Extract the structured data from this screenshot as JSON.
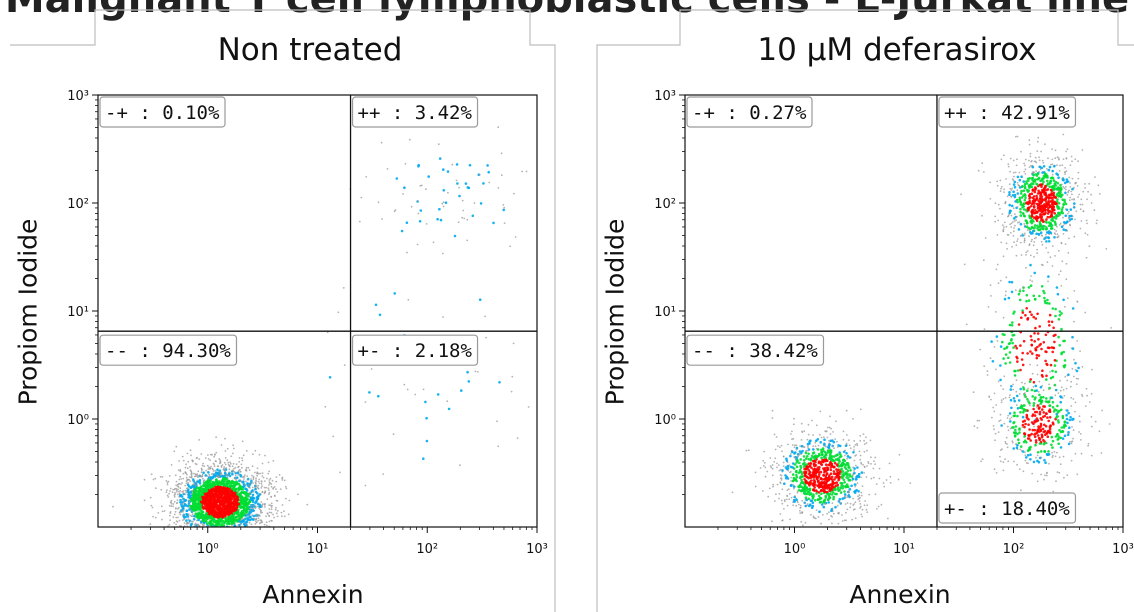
{
  "figure_title": "Malignant T cell lymphoblastic cells - L-Jurkat line",
  "chart_data": [
    {
      "type": "scatter",
      "title": "Non treated",
      "xlabel": "Annexin",
      "ylabel": "Propiom Iodide",
      "x_scale": "log",
      "y_scale": "log",
      "xlim": [
        0.1,
        1000
      ],
      "ylim": [
        0.1,
        1000
      ],
      "x_ticks": [
        1,
        10,
        100,
        1000
      ],
      "y_ticks": [
        1,
        10,
        100,
        1000
      ],
      "x_tick_labels": [
        "10⁰",
        "10¹",
        "10²",
        "10³"
      ],
      "y_tick_labels": [
        "10⁰",
        "10¹",
        "10²",
        "10³"
      ],
      "quadrant_gate": {
        "x": 20,
        "y": 6.5
      },
      "quadrants": [
        {
          "name": "-+",
          "label": "-+ : 0.10%",
          "percent": 0.1,
          "position": "top-left"
        },
        {
          "name": "++",
          "label": "++ : 3.42%",
          "percent": 3.42,
          "position": "top-right"
        },
        {
          "name": "--",
          "label": "-- : 94.30%",
          "percent": 94.3,
          "position": "bottom-left"
        },
        {
          "name": "+-",
          "label": "+- : 2.18%",
          "percent": 2.18,
          "position": "bottom-right"
        }
      ],
      "populations": [
        {
          "x": 1.3,
          "y": 0.17,
          "spread_x": 0.22,
          "spread_y": 0.18,
          "weight": 0.943
        },
        {
          "x": 150,
          "y": 110,
          "spread_x": 0.35,
          "spread_y": 0.25,
          "weight": 0.034
        },
        {
          "x": 90,
          "y": 3,
          "spread_x": 0.5,
          "spread_y": 0.6,
          "weight": 0.022
        }
      ],
      "density_colors": [
        "#9a9a9a",
        "#00aaee",
        "#00dd33",
        "#ff0000"
      ]
    },
    {
      "type": "scatter",
      "title": "10 µM deferasirox",
      "xlabel": "Annexin",
      "ylabel": "Propiom Iodide",
      "x_scale": "log",
      "y_scale": "log",
      "xlim": [
        0.1,
        1000
      ],
      "ylim": [
        0.1,
        1000
      ],
      "x_ticks": [
        1,
        10,
        100,
        1000
      ],
      "y_ticks": [
        1,
        10,
        100,
        1000
      ],
      "x_tick_labels": [
        "10⁰",
        "10¹",
        "10²",
        "10³"
      ],
      "y_tick_labels": [
        "10⁰",
        "10¹",
        "10²",
        "10³"
      ],
      "quadrant_gate": {
        "x": 20,
        "y": 6.5
      },
      "quadrants": [
        {
          "name": "-+",
          "label": "-+ : 0.27%",
          "percent": 0.27,
          "position": "top-left"
        },
        {
          "name": "++",
          "label": "++ : 42.91%",
          "percent": 42.91,
          "position": "top-right"
        },
        {
          "name": "--",
          "label": "-- : 38.42%",
          "percent": 38.42,
          "position": "bottom-left"
        },
        {
          "name": "+-",
          "label": "+- : 18.40%",
          "percent": 18.4,
          "position": "bottom-right"
        }
      ],
      "populations": [
        {
          "x": 1.8,
          "y": 0.3,
          "spread_x": 0.22,
          "spread_y": 0.2,
          "weight": 0.384
        },
        {
          "x": 180,
          "y": 100,
          "spread_x": 0.18,
          "spread_y": 0.22,
          "weight": 0.33
        },
        {
          "x": 160,
          "y": 5,
          "spread_x": 0.25,
          "spread_y": 0.45,
          "weight": 0.12
        },
        {
          "x": 170,
          "y": 0.9,
          "spread_x": 0.2,
          "spread_y": 0.22,
          "weight": 0.166
        }
      ],
      "density_colors": [
        "#9a9a9a",
        "#00aaee",
        "#00dd33",
        "#ff0000"
      ]
    }
  ]
}
